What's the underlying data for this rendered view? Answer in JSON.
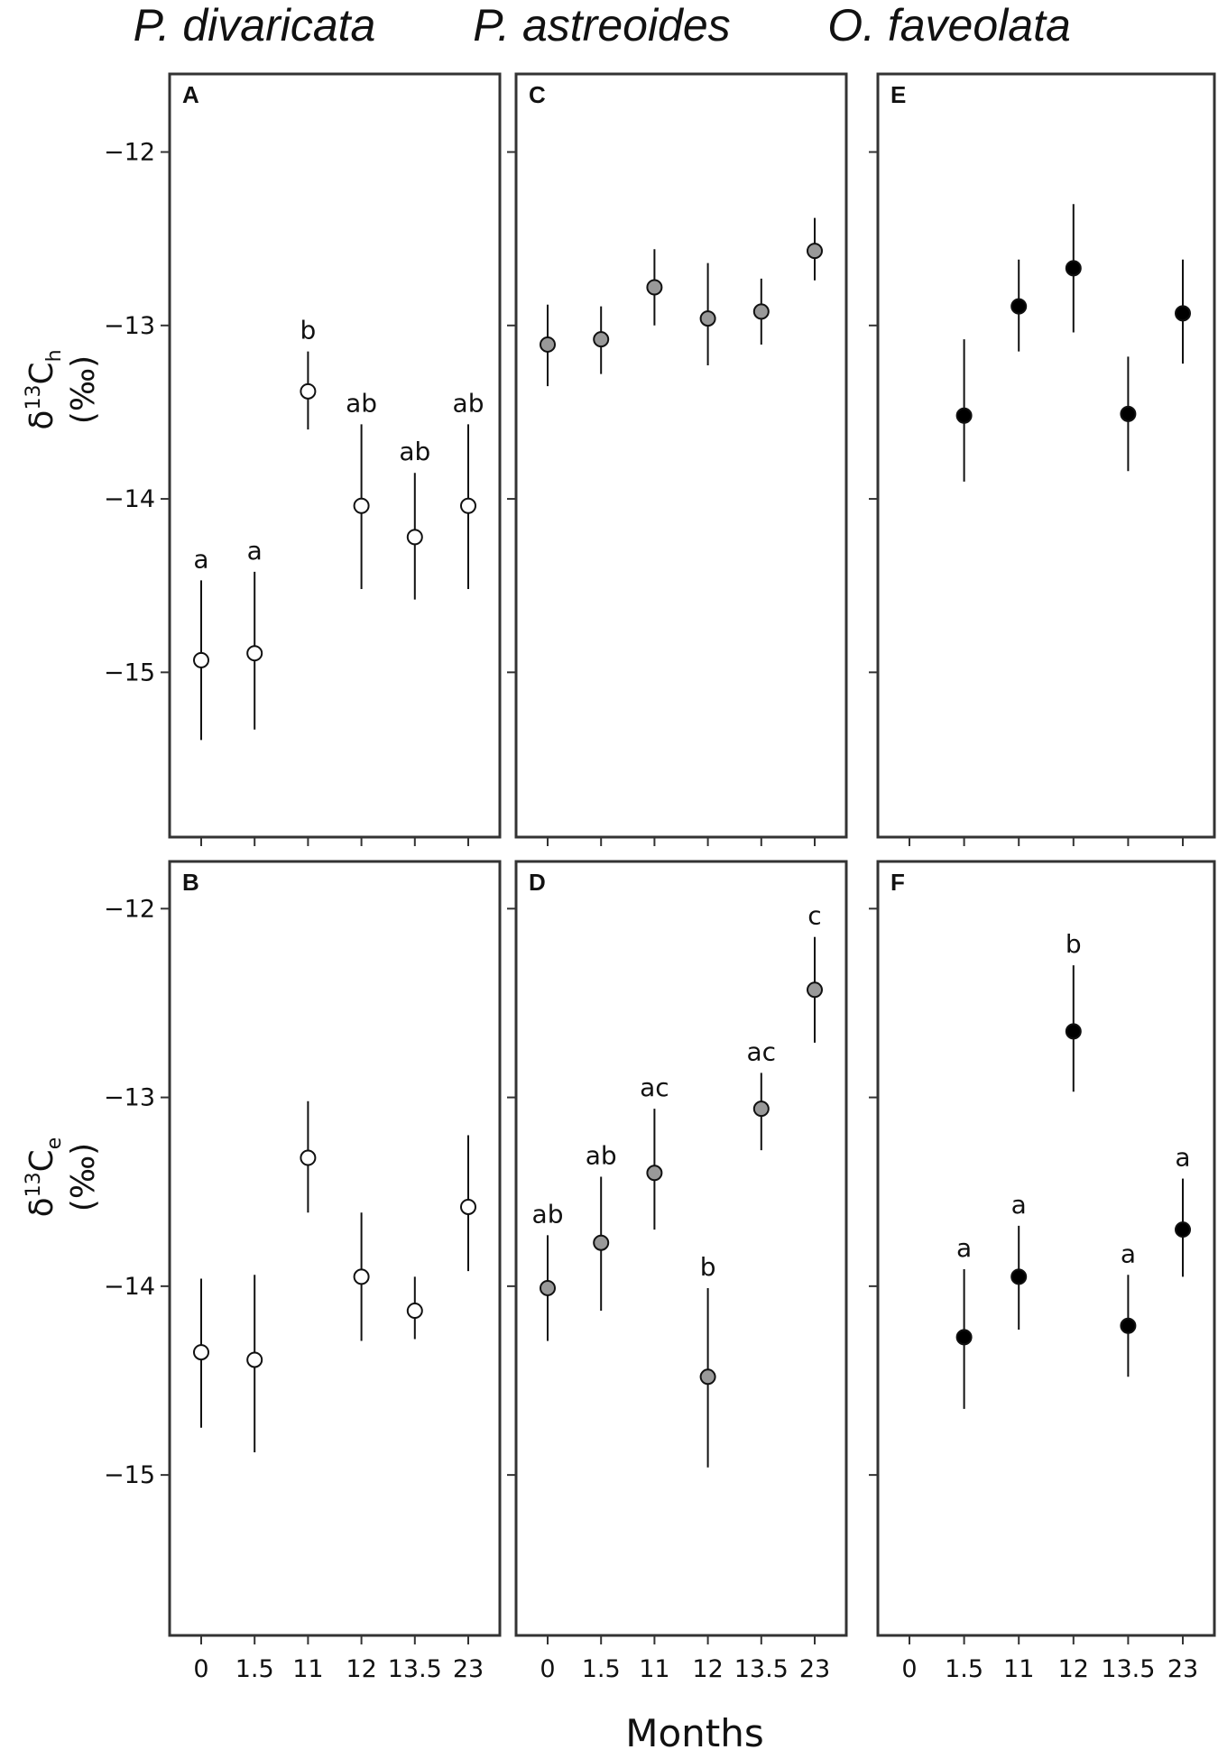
{
  "species_titles": [
    "P. divaricata",
    "P. astreoides",
    "O. faveolata"
  ],
  "x_axis_label": "Months",
  "y_axis_labels": {
    "top": {
      "symbol": "δ",
      "sup": "13",
      "base": "C",
      "sub": "h",
      "unit": "(‰)"
    },
    "bottom": {
      "symbol": "δ",
      "sup": "13",
      "base": "C",
      "sub": "e",
      "unit": "(‰)"
    }
  },
  "colors": {
    "P. divaricata": "#ffffff",
    "P. astreoides": "#999999",
    "O. faveolata": "#000000"
  },
  "chart_data": [
    {
      "type": "scatter",
      "panel": "A",
      "species": "P. divaricata",
      "row": "top",
      "categories": [
        "0",
        "1.5",
        "11",
        "12",
        "13.5",
        "23"
      ],
      "x": [
        0,
        1.5,
        11,
        12,
        13.5,
        23
      ],
      "y": [
        -14.93,
        -14.89,
        -13.38,
        -14.04,
        -14.22,
        -14.04
      ],
      "err_low": [
        -15.39,
        -15.33,
        -13.6,
        -14.52,
        -14.58,
        -14.52
      ],
      "err_high": [
        -14.47,
        -14.42,
        -13.15,
        -13.57,
        -13.85,
        -13.57
      ],
      "letters": [
        "a",
        "a",
        "b",
        "ab",
        "ab",
        "ab"
      ],
      "ylim": [
        -15.95,
        -11.55
      ],
      "yticks": [
        -12,
        -13,
        -14,
        -15
      ]
    },
    {
      "type": "scatter",
      "panel": "B",
      "species": "P. divaricata",
      "row": "bottom",
      "categories": [
        "0",
        "1.5",
        "11",
        "12",
        "13.5",
        "23"
      ],
      "x": [
        0,
        1.5,
        11,
        12,
        13.5,
        23
      ],
      "y": [
        -14.35,
        -14.39,
        -13.32,
        -13.95,
        -14.13,
        -13.58
      ],
      "err_low": [
        -14.75,
        -14.88,
        -13.61,
        -14.29,
        -14.28,
        -13.92
      ],
      "err_high": [
        -13.96,
        -13.94,
        -13.02,
        -13.61,
        -13.95,
        -13.2
      ],
      "letters": [],
      "ylim": [
        -15.85,
        -11.75
      ],
      "yticks": [
        -12,
        -13,
        -14,
        -15
      ]
    },
    {
      "type": "scatter",
      "panel": "C",
      "species": "P. astreoides",
      "row": "top",
      "categories": [
        "0",
        "1.5",
        "11",
        "12",
        "13.5",
        "23"
      ],
      "x": [
        0,
        1.5,
        11,
        12,
        13.5,
        23
      ],
      "y": [
        -13.11,
        -13.08,
        -12.78,
        -12.96,
        -12.92,
        -12.57
      ],
      "err_low": [
        -13.35,
        -13.28,
        -13.0,
        -13.23,
        -13.11,
        -12.74
      ],
      "err_high": [
        -12.88,
        -12.89,
        -12.56,
        -12.64,
        -12.73,
        -12.38
      ],
      "letters": [],
      "ylim": [
        -15.95,
        -11.55
      ],
      "yticks": [
        -12,
        -13,
        -14,
        -15
      ]
    },
    {
      "type": "scatter",
      "panel": "D",
      "species": "P. astreoides",
      "row": "bottom",
      "categories": [
        "0",
        "1.5",
        "11",
        "12",
        "13.5",
        "23"
      ],
      "x": [
        0,
        1.5,
        11,
        12,
        13.5,
        23
      ],
      "y": [
        -14.01,
        -13.77,
        -13.4,
        -14.48,
        -13.06,
        -12.43
      ],
      "err_low": [
        -14.29,
        -14.13,
        -13.7,
        -14.96,
        -13.28,
        -12.71
      ],
      "err_high": [
        -13.73,
        -13.42,
        -13.06,
        -14.01,
        -12.87,
        -12.15
      ],
      "letters": [
        "ab",
        "ab",
        "ac",
        "b",
        "ac",
        "c"
      ],
      "ylim": [
        -15.85,
        -11.75
      ],
      "yticks": [
        -12,
        -13,
        -14,
        -15
      ]
    },
    {
      "type": "scatter",
      "panel": "E",
      "species": "O. faveolata",
      "row": "top",
      "categories": [
        "0",
        "1.5",
        "11",
        "12",
        "13.5",
        "23"
      ],
      "x": [
        1.5,
        11,
        12,
        13.5,
        23
      ],
      "y": [
        -13.52,
        -12.89,
        -12.67,
        -13.51,
        -12.93
      ],
      "err_low": [
        -13.9,
        -13.15,
        -13.04,
        -13.84,
        -13.22
      ],
      "err_high": [
        -13.08,
        -12.62,
        -12.3,
        -13.18,
        -12.62
      ],
      "letters": [],
      "ylim": [
        -15.95,
        -11.55
      ],
      "yticks": [
        -12,
        -13,
        -14,
        -15
      ]
    },
    {
      "type": "scatter",
      "panel": "F",
      "species": "O. faveolata",
      "row": "bottom",
      "categories": [
        "0",
        "1.5",
        "11",
        "12",
        "13.5",
        "23"
      ],
      "x": [
        1.5,
        11,
        12,
        13.5,
        23
      ],
      "y": [
        -14.27,
        -13.95,
        -12.65,
        -14.21,
        -13.7
      ],
      "err_low": [
        -14.65,
        -14.23,
        -12.97,
        -14.48,
        -13.95
      ],
      "err_high": [
        -13.91,
        -13.68,
        -12.3,
        -13.94,
        -13.43
      ],
      "letters": [
        "a",
        "a",
        "b",
        "a",
        "a"
      ],
      "ylim": [
        -15.85,
        -11.75
      ],
      "yticks": [
        -12,
        -13,
        -14,
        -15
      ]
    }
  ]
}
